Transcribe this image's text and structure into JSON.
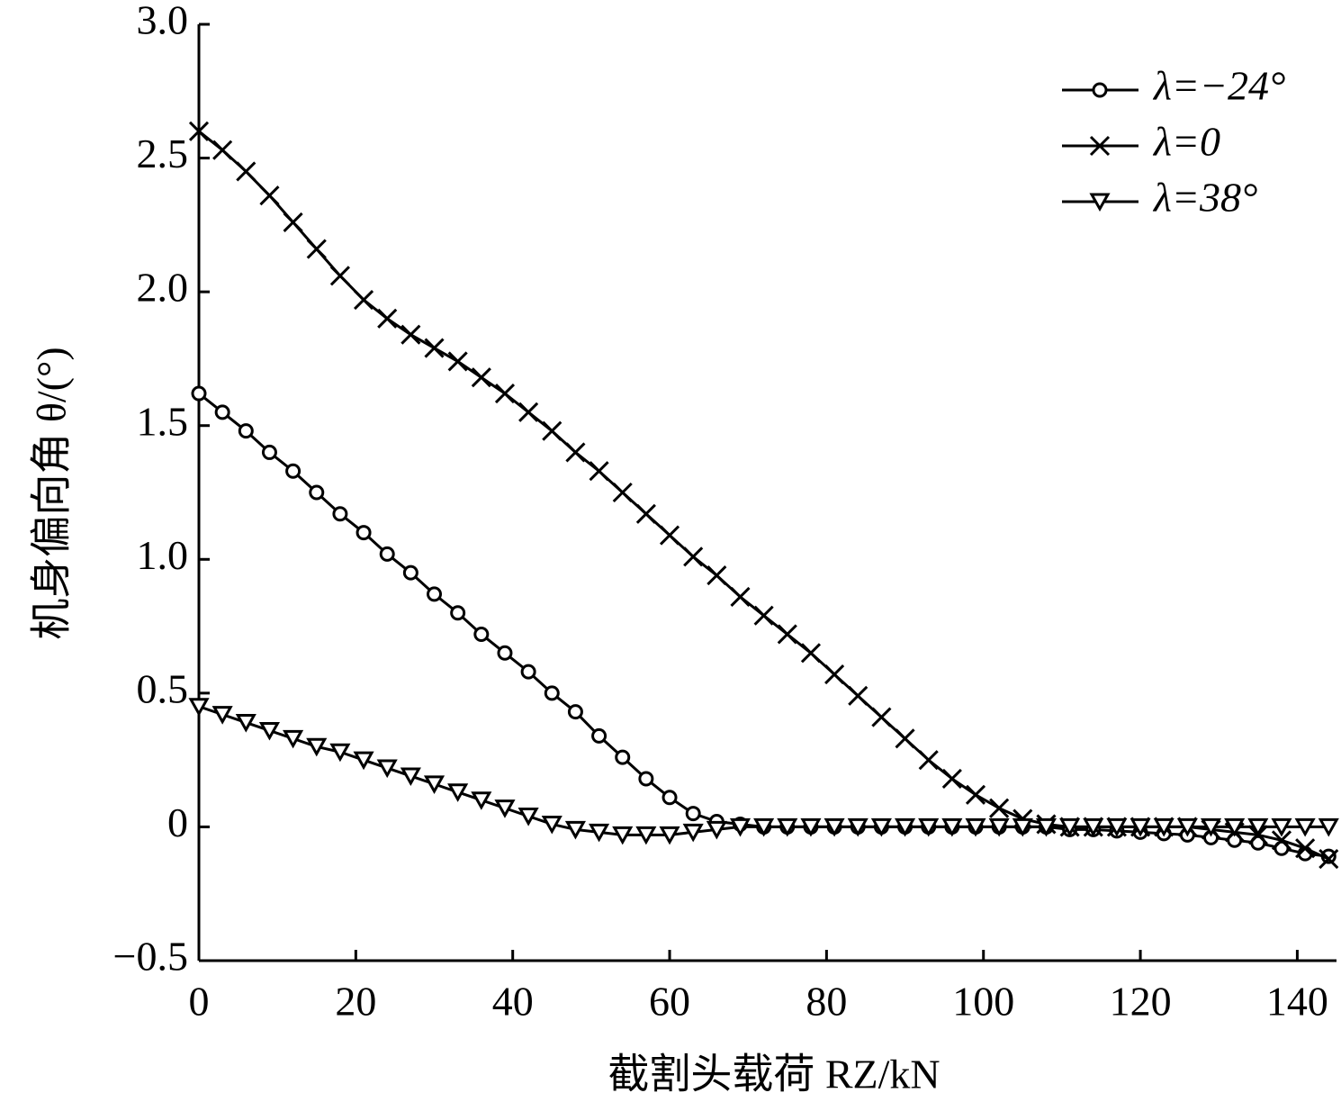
{
  "chart_data": {
    "type": "line",
    "x_label": "截割头载荷 RZ/kN",
    "y_label": "机身偏向角 θ/(°)",
    "x": [
      0,
      3,
      6,
      9,
      12,
      15,
      18,
      21,
      24,
      27,
      30,
      33,
      36,
      39,
      42,
      45,
      48,
      51,
      54,
      57,
      60,
      63,
      66,
      69,
      72,
      75,
      78,
      81,
      84,
      87,
      90,
      93,
      96,
      99,
      102,
      105,
      108,
      111,
      114,
      117,
      120,
      123,
      126,
      129,
      132,
      135,
      138,
      141,
      144
    ],
    "series": [
      {
        "name": "λ=−24°",
        "color": "#000000",
        "marker": "circle",
        "values": [
          1.62,
          1.55,
          1.48,
          1.4,
          1.33,
          1.25,
          1.17,
          1.1,
          1.02,
          0.95,
          0.87,
          0.8,
          0.72,
          0.65,
          0.58,
          0.5,
          0.43,
          0.34,
          0.26,
          0.18,
          0.11,
          0.05,
          0.02,
          0.01,
          0,
          0,
          0,
          0,
          0,
          0,
          0,
          0,
          0,
          0,
          0,
          0,
          0,
          -0.01,
          -0.01,
          -0.015,
          -0.02,
          -0.025,
          -0.03,
          -0.04,
          -0.05,
          -0.06,
          -0.08,
          -0.1,
          -0.11
        ]
      },
      {
        "name": "λ=0",
        "color": "#000000",
        "marker": "cross",
        "values": [
          2.6,
          2.53,
          2.45,
          2.36,
          2.26,
          2.16,
          2.06,
          1.97,
          1.9,
          1.84,
          1.79,
          1.74,
          1.68,
          1.62,
          1.55,
          1.48,
          1.4,
          1.33,
          1.25,
          1.17,
          1.09,
          1.01,
          0.94,
          0.86,
          0.79,
          0.72,
          0.65,
          0.57,
          0.49,
          0.41,
          0.33,
          0.25,
          0.18,
          0.12,
          0.07,
          0.03,
          0.01,
          0,
          0,
          0,
          0,
          0,
          0,
          -0.01,
          -0.02,
          -0.03,
          -0.05,
          -0.08,
          -0.12
        ]
      },
      {
        "name": "λ=38°",
        "color": "#000000",
        "marker": "triangle-down",
        "values": [
          0.45,
          0.42,
          0.39,
          0.36,
          0.33,
          0.3,
          0.28,
          0.25,
          0.22,
          0.19,
          0.16,
          0.13,
          0.1,
          0.07,
          0.04,
          0.01,
          -0.01,
          -0.02,
          -0.03,
          -0.03,
          -0.03,
          -0.02,
          -0.01,
          0,
          0,
          0,
          0,
          0,
          0,
          0,
          0,
          0,
          0,
          0,
          0,
          0,
          0,
          0,
          0,
          0,
          0,
          0,
          0,
          0,
          0,
          0,
          0,
          0,
          0
        ]
      }
    ],
    "xlim": [
      0,
      145
    ],
    "xticks": [
      0,
      20,
      40,
      60,
      80,
      100,
      120,
      140
    ],
    "ylim": [
      -0.5,
      3
    ],
    "yticks": [
      {
        "value": -0.5,
        "label": "−0.5"
      },
      0,
      0.5,
      {
        "value": 1,
        "label": "1.0"
      },
      1.5,
      {
        "value": 2,
        "label": "2.0"
      },
      2.5,
      {
        "value": 3,
        "label": "3.0"
      }
    ],
    "grid": false,
    "legend": "top-right"
  }
}
